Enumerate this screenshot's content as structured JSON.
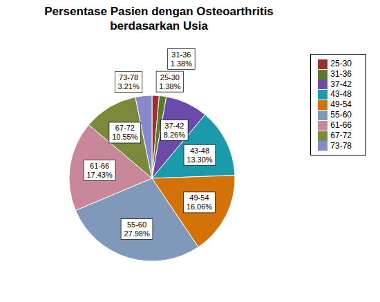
{
  "chart_data": {
    "type": "pie",
    "title": "Persentase Pasien dengan Osteoarthritis\nberdasarkan Usia",
    "categories": [
      "25-30",
      "31-36",
      "37-42",
      "43-48",
      "49-54",
      "55-60",
      "61-66",
      "67-72",
      "73-78"
    ],
    "values": [
      1.38,
      1.38,
      8.26,
      13.3,
      16.06,
      27.98,
      17.43,
      10.55,
      3.21
    ],
    "colors": [
      "#9B3030",
      "#5a7a2a",
      "#6b4aaa",
      "#1a9aaa",
      "#d4720a",
      "#8099bb",
      "#c98899",
      "#7a8a3a",
      "#8888cc"
    ],
    "data_labels": true,
    "value_labels": [
      "25-30\n1.38%",
      "31-36\n1.38%",
      "37-42\n8.26%",
      "43-48\n13.30%",
      "49-54\n16.06%",
      "55-60\n27.98%",
      "61-66\n17.43%",
      "67-72\n10.55%",
      "73-78\n3.21%"
    ],
    "legend": "upper right"
  }
}
